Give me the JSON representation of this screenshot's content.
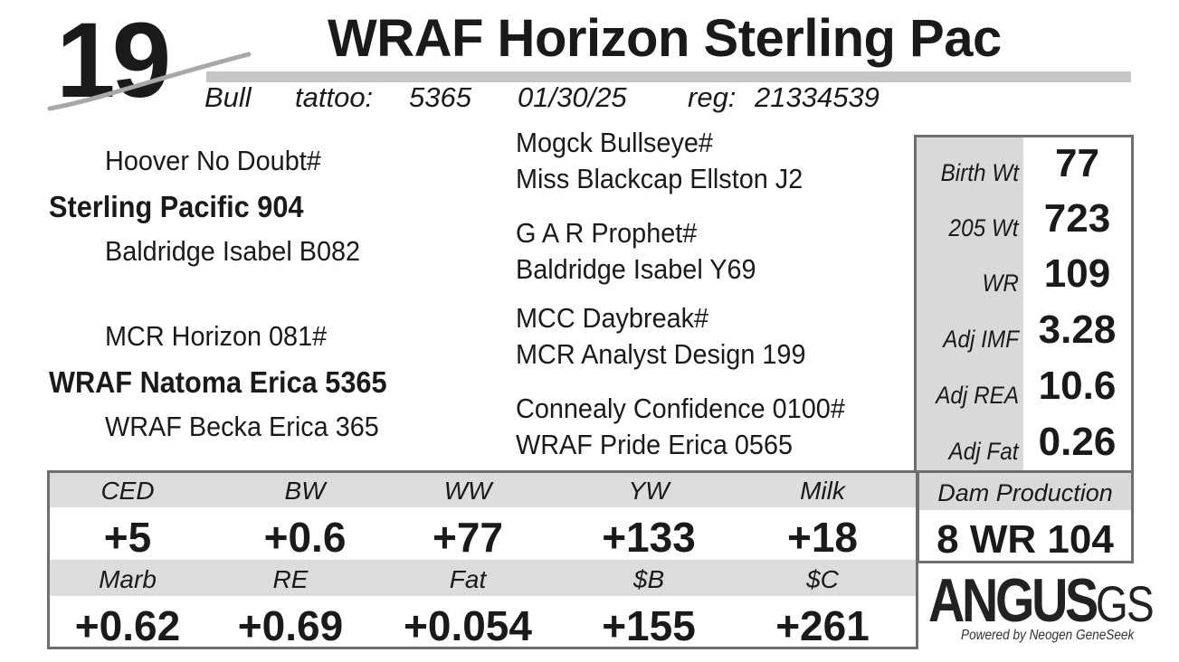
{
  "header": {
    "lot_number": "19",
    "animal_name": "WRAF Horizon Sterling Pac",
    "sex": "Bull",
    "tattoo_label": "tattoo:",
    "tattoo": "5365",
    "birth_date": "01/30/25",
    "reg_label": "reg:",
    "registration": "21334539"
  },
  "pedigree": {
    "sire_side": {
      "sire_sire": "Hoover No Doubt#",
      "sire": "Sterling Pacific 904",
      "sire_dam": "Baldridge Isabel B082",
      "col3": {
        "line1": "Mogck Bullseye#",
        "line2": "Miss Blackcap Ellston J2",
        "line3": "G A R Prophet#",
        "line4": "Baldridge Isabel Y69"
      }
    },
    "dam_side": {
      "dam_sire": "MCR Horizon 081#",
      "dam": "WRAF Natoma Erica 5365",
      "dam_dam": "WRAF Becka Erica 365",
      "col3": {
        "line1": "MCC Daybreak#",
        "line2": "MCR Analyst Design 199",
        "line3": "Connealy Confidence 0100#",
        "line4": "WRAF Pride Erica 0565"
      }
    }
  },
  "stats": [
    {
      "label": "Birth Wt",
      "value": "77"
    },
    {
      "label": "205 Wt",
      "value": "723"
    },
    {
      "label": "WR",
      "value": "109"
    },
    {
      "label": "Adj IMF",
      "value": "3.28"
    },
    {
      "label": "Adj REA",
      "value": "10.6"
    },
    {
      "label": "Adj Fat",
      "value": "0.26"
    }
  ],
  "epds": {
    "row1": [
      {
        "label": "CED",
        "value": "+5"
      },
      {
        "label": "BW",
        "value": "+0.6"
      },
      {
        "label": "WW",
        "value": "+77"
      },
      {
        "label": "YW",
        "value": "+133"
      },
      {
        "label": "Milk",
        "value": "+18"
      }
    ],
    "row2": [
      {
        "label": "Marb",
        "value": "+0.62"
      },
      {
        "label": "RE",
        "value": "+0.69"
      },
      {
        "label": "Fat",
        "value": "+0.054"
      },
      {
        "label": "$B",
        "value": "+155"
      },
      {
        "label": "$C",
        "value": "+261"
      }
    ]
  },
  "dam_production": {
    "label": "Dam Production",
    "value": "8 WR 104"
  },
  "logo": {
    "main": "ANGUS",
    "suffix": "GS",
    "tagline": "Powered by Neogen GeneSeek"
  },
  "colors": {
    "band_gray": "#d9d9d9",
    "border_gray": "#6e6e6e",
    "text": "#1a1a1a"
  }
}
